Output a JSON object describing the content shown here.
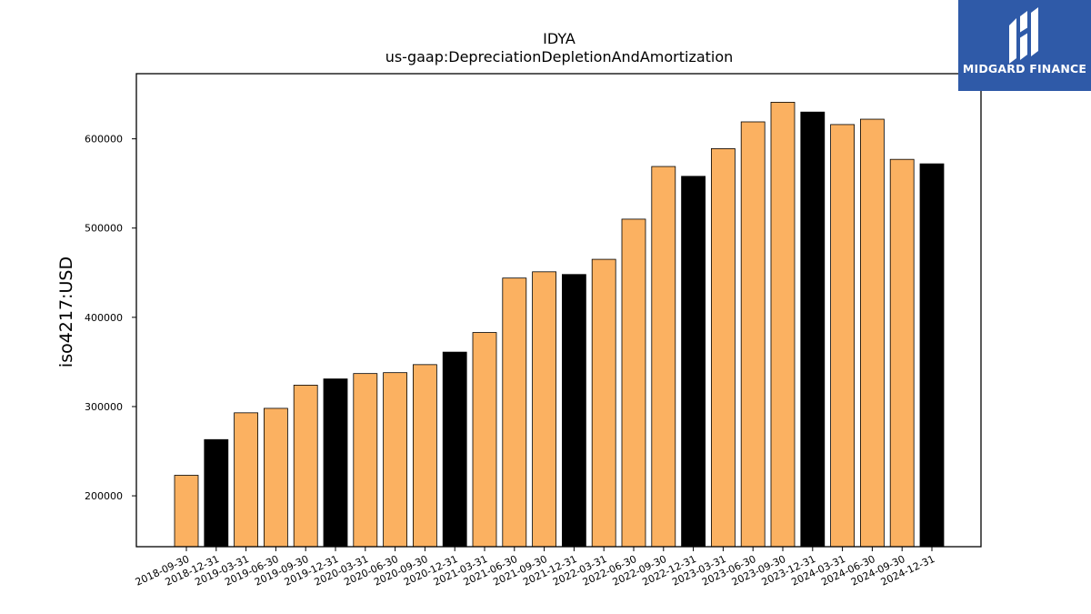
{
  "chart_data": {
    "type": "bar",
    "title": "IDYA",
    "subtitle": "us-gaap:DepreciationDepletionAndAmortization",
    "xlabel": "",
    "ylabel": "iso4217:USD",
    "ylim": [
      143000,
      673000
    ],
    "yticks": [
      200000,
      300000,
      400000,
      500000,
      600000
    ],
    "categories": [
      "2018-09-30",
      "2018-12-31",
      "2019-03-31",
      "2019-06-30",
      "2019-09-30",
      "2019-12-31",
      "2020-03-31",
      "2020-06-30",
      "2020-09-30",
      "2020-12-31",
      "2021-03-31",
      "2021-06-30",
      "2021-09-30",
      "2021-12-31",
      "2022-03-31",
      "2022-06-30",
      "2022-09-30",
      "2022-12-31",
      "2023-03-31",
      "2023-06-30",
      "2023-09-30",
      "2023-12-31",
      "2024-03-31",
      "2024-06-30",
      "2024-09-30",
      "2024-12-31"
    ],
    "values": [
      223000,
      263000,
      293000,
      298000,
      324000,
      331000,
      337000,
      338000,
      347000,
      361000,
      383000,
      444000,
      451000,
      448000,
      465000,
      510000,
      569000,
      558000,
      589000,
      619000,
      641000,
      630000,
      616000,
      622000,
      577000,
      572000
    ],
    "bar_colors": [
      "#fbb161",
      "#000000",
      "#fbb161",
      "#fbb161",
      "#fbb161",
      "#000000",
      "#fbb161",
      "#fbb161",
      "#fbb161",
      "#000000",
      "#fbb161",
      "#fbb161",
      "#fbb161",
      "#000000",
      "#fbb161",
      "#fbb161",
      "#fbb161",
      "#000000",
      "#fbb161",
      "#fbb161",
      "#fbb161",
      "#000000",
      "#fbb161",
      "#fbb161",
      "#fbb161",
      "#000000"
    ],
    "grid": false,
    "legend": "none"
  },
  "brand": {
    "name": "MIDGARD FINANCE",
    "background": "#2f5aa8",
    "text_color": "#ffffff"
  }
}
